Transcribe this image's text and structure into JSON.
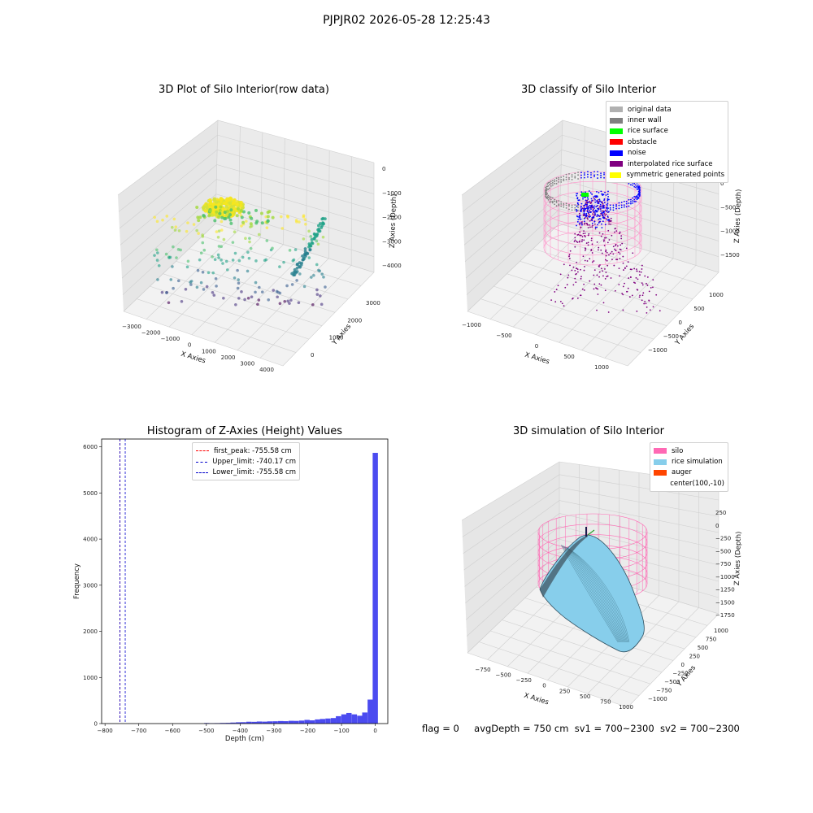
{
  "suptitle": "PJPJR02 2026-05-28 12:25:43",
  "colors": {
    "histogram_bar": "#4b4bf0",
    "first_peak_line": "#ff0000",
    "limit_lines": "#0000cc",
    "silo": "#ff69b4",
    "rice_simulation": "#87ceeb",
    "auger": "#ff4500",
    "noise": "#0000ff",
    "interpolated": "#800080",
    "rice_surface": "#00ff00",
    "symmetric": "#ffff00",
    "original": "#b0b0b0",
    "inner_wall": "#808080"
  },
  "footer": {
    "flag": "flag = 0",
    "avg_depth": "avgDepth = 750 cm",
    "sv1": "sv1 = 700~2300",
    "sv2": "sv2 = 700~2300"
  },
  "chart_data": [
    {
      "type": "scatter",
      "projection": "3d",
      "title": "3D Plot of Silo Interior(row data)",
      "xlabel": "X Axies",
      "ylabel": "Y Axies",
      "zlabel": "Z Axies (Depth)",
      "x_ticks": [
        "−3000",
        "−2000",
        "−1000",
        "0",
        "1000",
        "2000",
        "3000",
        "4000"
      ],
      "y_ticks": [
        "0",
        "1000",
        "2000",
        "3000"
      ],
      "z_ticks": [
        "0",
        "−1000",
        "−2000",
        "−3000",
        "−4000"
      ],
      "xlim": [
        -3500,
        4500
      ],
      "ylim": [
        -800,
        3800
      ],
      "zlim": [
        -4500,
        300
      ],
      "colormap": "viridis"
    },
    {
      "type": "scatter",
      "projection": "3d",
      "title": "3D classify of Silo Interior",
      "xlabel": "X Axies",
      "ylabel": "Y Axies",
      "zlabel": "Z Axies (Depth)",
      "x_ticks": [
        "−1000",
        "−500",
        "0",
        "500",
        "1000"
      ],
      "y_ticks": [
        "−1000",
        "−500",
        "0",
        "500",
        "1000"
      ],
      "z_ticks": [
        "0",
        "−500",
        "−1000",
        "−1500"
      ],
      "legend": [
        "original data",
        "inner wall",
        "rice surface",
        "obstacle",
        "noise",
        "interpolated rice surface",
        "symmetric generated points"
      ],
      "legend_colors": [
        "#b0b0b0",
        "#808080",
        "#00ff00",
        "#ff0000",
        "#0000ff",
        "#800080",
        "#ffff00"
      ],
      "legend_placement": "top-right"
    },
    {
      "type": "bar",
      "title": "Histogram of Z-Axies (Height) Values",
      "xlabel": "Depth (cm)",
      "ylabel": "Frequency",
      "xlim": [
        -810,
        37
      ],
      "ylim": [
        0,
        6170
      ],
      "x_ticks": [
        -800,
        -700,
        -600,
        -500,
        -400,
        -300,
        -200,
        -100,
        0
      ],
      "y_ticks": [
        0,
        1000,
        2000,
        3000,
        4000,
        5000,
        6000
      ],
      "bin_width": 15.6,
      "bins": [
        {
          "x": -499,
          "h": 12
        },
        {
          "x": -483,
          "h": 8
        },
        {
          "x": -468,
          "h": 10
        },
        {
          "x": -452,
          "h": 14
        },
        {
          "x": -436,
          "h": 16
        },
        {
          "x": -421,
          "h": 22
        },
        {
          "x": -405,
          "h": 28
        },
        {
          "x": -390,
          "h": 30
        },
        {
          "x": -374,
          "h": 40
        },
        {
          "x": -358,
          "h": 38
        },
        {
          "x": -343,
          "h": 45
        },
        {
          "x": -327,
          "h": 42
        },
        {
          "x": -312,
          "h": 48
        },
        {
          "x": -296,
          "h": 50
        },
        {
          "x": -280,
          "h": 55
        },
        {
          "x": -265,
          "h": 52
        },
        {
          "x": -249,
          "h": 60
        },
        {
          "x": -234,
          "h": 58
        },
        {
          "x": -218,
          "h": 65
        },
        {
          "x": -202,
          "h": 80
        },
        {
          "x": -187,
          "h": 70
        },
        {
          "x": -171,
          "h": 90
        },
        {
          "x": -156,
          "h": 100
        },
        {
          "x": -140,
          "h": 110
        },
        {
          "x": -124,
          "h": 120
        },
        {
          "x": -109,
          "h": 160
        },
        {
          "x": -93,
          "h": 200
        },
        {
          "x": -78,
          "h": 230
        },
        {
          "x": -62,
          "h": 200
        },
        {
          "x": -46,
          "h": 170
        },
        {
          "x": -31,
          "h": 240
        },
        {
          "x": -15,
          "h": 520
        },
        {
          "x": 0,
          "h": 5870
        }
      ],
      "vlines": [
        {
          "label": "first_peak: -755.58 cm",
          "x": -755.58,
          "color": "#ff0000"
        },
        {
          "label": "Upper_limit: -740.17 cm",
          "x": -740.17,
          "color": "#0000cc"
        },
        {
          "label": "Lower_limit: -755.58 cm",
          "x": -755.58,
          "color": "#0000cc"
        }
      ],
      "legend_placement": "upper-center"
    },
    {
      "type": "surface",
      "projection": "3d",
      "title": "3D simulation of Silo Interior",
      "xlabel": "X Axies",
      "ylabel": "Y Axies",
      "zlabel": "Z Axies (Depth)",
      "x_ticks": [
        "−750",
        "−500",
        "−250",
        "0",
        "250",
        "500",
        "750",
        "1000"
      ],
      "y_ticks": [
        "−1000",
        "−750",
        "−500",
        "−250",
        "0",
        "250",
        "500",
        "750",
        "1000"
      ],
      "z_ticks": [
        "250",
        "0",
        "−250",
        "−500",
        "−750",
        "−1000",
        "−1250",
        "−1500",
        "−1750"
      ],
      "legend": [
        "silo",
        "rice simulation",
        "auger",
        "center(100,-10)"
      ],
      "legend_colors": [
        "#ff69b4",
        "#87ceeb",
        "#ff4500",
        ""
      ],
      "legend_placement": "top-right"
    }
  ]
}
